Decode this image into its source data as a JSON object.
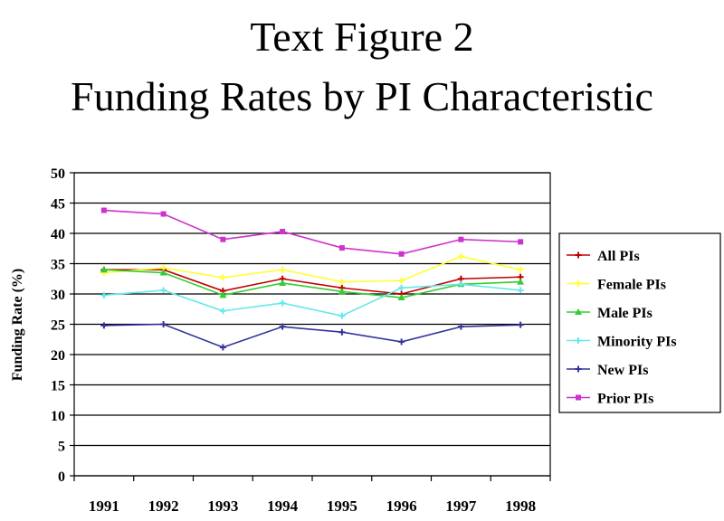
{
  "title_line1": "Text Figure 2",
  "title_line2": "Funding Rates by PI Characteristic",
  "chart_data": {
    "type": "line",
    "title": "Text Figure 2 Funding Rates by PI Characteristic",
    "xlabel": "",
    "ylabel": "Funding Rate (%)",
    "ylim": [
      0,
      50
    ],
    "yticks": [
      "0",
      "5",
      "10",
      "15",
      "20",
      "25",
      "30",
      "35",
      "40",
      "45",
      "50"
    ],
    "categories": [
      "1991",
      "1992",
      "1993",
      "1994",
      "1995",
      "1996",
      "1997",
      "1998"
    ],
    "grid": "horizontal",
    "legend_position": "right",
    "series": [
      {
        "name": "All PIs",
        "color": "#c00000",
        "marker": "plus",
        "values": [
          34.0,
          34.0,
          30.5,
          32.5,
          31.0,
          30.0,
          32.5,
          32.8
        ]
      },
      {
        "name": "Female PIs",
        "color": "#ffff33",
        "marker": "plus",
        "values": [
          33.5,
          34.3,
          32.7,
          34.0,
          32.0,
          32.2,
          36.2,
          34.0
        ]
      },
      {
        "name": "Male PIs",
        "color": "#33cc33",
        "marker": "triangle",
        "values": [
          34.0,
          33.5,
          29.8,
          31.8,
          30.4,
          29.4,
          31.6,
          32.0
        ]
      },
      {
        "name": "Minority PIs",
        "color": "#66e8e8",
        "marker": "plus",
        "values": [
          29.8,
          30.6,
          27.2,
          28.5,
          26.4,
          31.0,
          31.6,
          30.6
        ]
      },
      {
        "name": "New PIs",
        "color": "#333399",
        "marker": "plus",
        "values": [
          24.8,
          25.0,
          21.2,
          24.6,
          23.7,
          22.1,
          24.6,
          24.9
        ]
      },
      {
        "name": "Prior PIs",
        "color": "#cc33cc",
        "marker": "square",
        "values": [
          43.8,
          43.2,
          39.0,
          40.3,
          37.6,
          36.6,
          39.0,
          38.6
        ]
      }
    ]
  }
}
